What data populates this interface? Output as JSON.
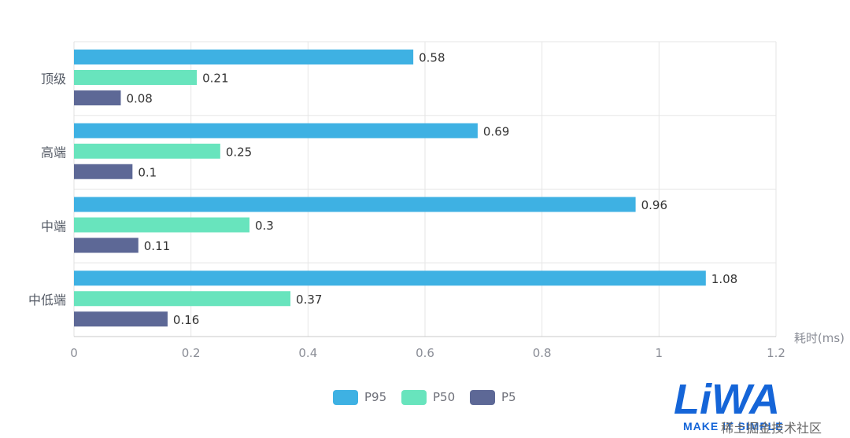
{
  "chart_data": {
    "type": "bar",
    "orientation": "horizontal",
    "categories": [
      "顶级",
      "高端",
      "中端",
      "中低端"
    ],
    "series": [
      {
        "name": "P95",
        "color": "#3eb1e3",
        "values": [
          0.58,
          0.69,
          0.96,
          1.08
        ]
      },
      {
        "name": "P50",
        "color": "#68e4bd",
        "values": [
          0.21,
          0.25,
          0.3,
          0.37
        ]
      },
      {
        "name": "P5",
        "color": "#5d6896",
        "values": [
          0.08,
          0.1,
          0.11,
          0.16
        ]
      }
    ],
    "value_labels": [
      [
        "0.58",
        "0.69",
        "0.96",
        "1.08"
      ],
      [
        "0.21",
        "0.25",
        "0.3",
        "0.37"
      ],
      [
        "0.08",
        "0.1",
        "0.11",
        "0.16"
      ]
    ],
    "xlabel": "耗时(ms)",
    "ylabel": "",
    "xlim": [
      0,
      1.2
    ],
    "xticks": [
      "0",
      "0.2",
      "0.4",
      "0.6",
      "0.8",
      "1",
      "1.2"
    ],
    "grid": true,
    "legend_position": "bottom-center"
  },
  "watermark": {
    "logo_text": "LiWA",
    "tagline": "MAKE IT SIMPLE",
    "community": "稀土掘金技术社区",
    "brand_color": "#1565d8"
  }
}
